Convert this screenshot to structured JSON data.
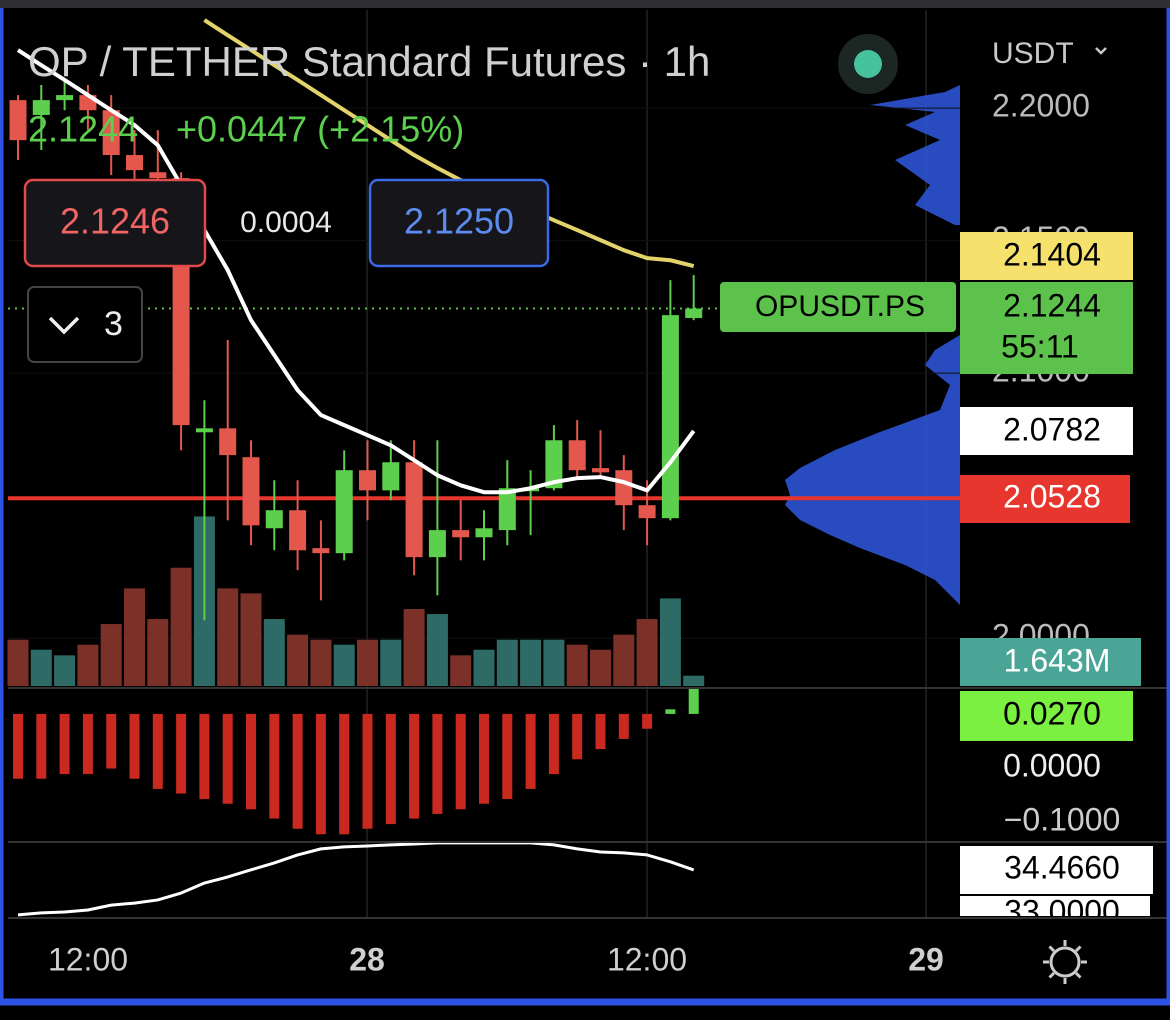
{
  "header": {
    "title": "OP / TETHER Standard Futures · 1h",
    "last": "2.1244",
    "change": "+0.0447 (+2.15%)",
    "currency": "USDT"
  },
  "order": {
    "bid": "2.1246",
    "spread": "0.0004",
    "ask": "2.1250",
    "indicators": "3"
  },
  "tags": {
    "symbol": "OPUSDT.PS",
    "ma_slow": "2.1404",
    "price": "2.1244",
    "countdown": "55:11",
    "ma_fast": "2.0782",
    "level": "2.0528",
    "volume": "1.643M",
    "macd": "0.0270",
    "macd_zero": "0.0000",
    "macd_low": "−0.1000",
    "osc": "34.4660",
    "osc_low": "33.0000"
  },
  "time_labels": [
    "12:00",
    "28",
    "12:00",
    "29"
  ],
  "chart_data": {
    "type": "candlestick",
    "open": [
      2.203,
      2.1974,
      2.203,
      2.2049,
      2.1992,
      2.1823,
      2.1758,
      2.1736,
      2.0777,
      2.0792,
      2.0683,
      2.0415,
      2.0483,
      2.034,
      2.0321,
      2.0634,
      2.0558,
      2.0664,
      2.0306,
      2.0408,
      2.0381,
      2.0408,
      2.0558,
      2.0566,
      2.0747,
      2.0642,
      2.0634,
      2.0502,
      2.0453,
      2.1208
    ],
    "high": [
      2.2049,
      2.2087,
      2.2106,
      2.2087,
      2.2049,
      2.1917,
      2.1917,
      2.1758,
      2.0898,
      2.1125,
      2.0747,
      2.0596,
      2.0596,
      2.0445,
      2.0709,
      2.0747,
      2.0747,
      2.0747,
      2.0747,
      2.0521,
      2.0483,
      2.0672,
      2.0634,
      2.0804,
      2.0823,
      2.0785,
      2.0691,
      2.0596,
      2.1351,
      2.137
    ],
    "low": [
      2.1804,
      2.1842,
      2.1992,
      2.1917,
      2.1747,
      2.1709,
      2.1653,
      2.0709,
      2.0068,
      2.0445,
      2.0351,
      2.0332,
      2.0257,
      2.0143,
      2.0294,
      2.0445,
      2.0521,
      2.0238,
      2.0162,
      2.0294,
      2.0294,
      2.0351,
      2.0389,
      2.0558,
      2.0604,
      2.0615,
      2.0408,
      2.0351,
      2.0445,
      2.12
    ],
    "close": [
      2.1879,
      2.203,
      2.2049,
      2.1992,
      2.1823,
      2.1766,
      2.1736,
      2.0804,
      2.0792,
      2.0691,
      2.0426,
      2.0483,
      2.0332,
      2.0321,
      2.0634,
      2.0558,
      2.0664,
      2.0306,
      2.0408,
      2.0381,
      2.0415,
      2.0566,
      2.0566,
      2.0747,
      2.0634,
      2.0626,
      2.0502,
      2.0453,
      2.1219,
      2.1244
    ],
    "ma_fast": [
      2.2219,
      2.2162,
      2.2106,
      2.2049,
      2.1992,
      2.1936,
      2.186,
      2.1709,
      2.154,
      2.1389,
      2.12,
      2.1068,
      2.0936,
      2.0842,
      2.0804,
      2.0766,
      2.0728,
      2.0672,
      2.0615,
      2.0577,
      2.0551,
      2.0551,
      2.0566,
      2.0589,
      2.0604,
      2.0608,
      2.0589,
      2.0558,
      2.0664,
      2.0782
    ],
    "ma_slow": [
      null,
      null,
      null,
      null,
      null,
      null,
      null,
      null,
      2.2332,
      2.2275,
      2.2219,
      2.2162,
      2.2106,
      2.2049,
      2.1992,
      2.1936,
      2.1879,
      2.1823,
      2.1774,
      2.1728,
      2.1691,
      2.1653,
      2.1615,
      2.1577,
      2.154,
      2.1502,
      2.1464,
      2.1434,
      2.1426,
      2.1404
    ],
    "level": 2.0528,
    "ylim": [
      1.982,
      2.237
    ],
    "yticks": [
      {
        "value": 2.2,
        "label": "2.2000"
      },
      {
        "value": 2.15,
        "label": "2.1500"
      },
      {
        "value": 2.1,
        "label": "2.1000"
      },
      {
        "value": 2.0,
        "label": "2.0000"
      }
    ],
    "volume": [
      7.4,
      5.8,
      4.9,
      6.6,
      9.9,
      15.6,
      10.7,
      18.9,
      27.1,
      15.6,
      14.8,
      10.7,
      8.2,
      7.4,
      6.6,
      7.4,
      7.4,
      12.3,
      11.5,
      4.9,
      5.8,
      7.4,
      7.4,
      7.4,
      6.6,
      5.8,
      8.2,
      10.7,
      14.0,
      1.643
    ],
    "volume_lim": [
      0,
      35
    ],
    "macd_hist": [
      -0.07,
      -0.07,
      -0.065,
      -0.065,
      -0.059,
      -0.07,
      -0.081,
      -0.086,
      -0.092,
      -0.097,
      -0.103,
      -0.113,
      -0.124,
      -0.13,
      -0.13,
      -0.124,
      -0.119,
      -0.113,
      -0.108,
      -0.103,
      -0.097,
      -0.092,
      -0.081,
      -0.065,
      -0.049,
      -0.038,
      -0.027,
      -0.016,
      0.005,
      0.027
    ],
    "macd_lim": [
      -0.134,
      0.028
    ],
    "osc": [
      32.9,
      32.97,
      33.0,
      33.07,
      33.24,
      33.31,
      33.42,
      33.66,
      34.01,
      34.22,
      34.47,
      34.71,
      34.99,
      35.2,
      35.27,
      35.3,
      35.34,
      35.37,
      35.41,
      35.41,
      35.41,
      35.41,
      35.41,
      35.34,
      35.2,
      35.09,
      35.06,
      34.99,
      34.75,
      34.466
    ],
    "osc_lim": [
      32.895,
      35.44
    ],
    "up_color": "#5ccf4c",
    "down_color": "#e4574d",
    "up_volume_color": "#2e6b66",
    "down_volume_color": "#7c3128",
    "macd_color": "#c9291f",
    "ma_fast_color": "#ffffff",
    "ma_slow_color": "#e2d36a",
    "level_color": "#e5352c"
  }
}
